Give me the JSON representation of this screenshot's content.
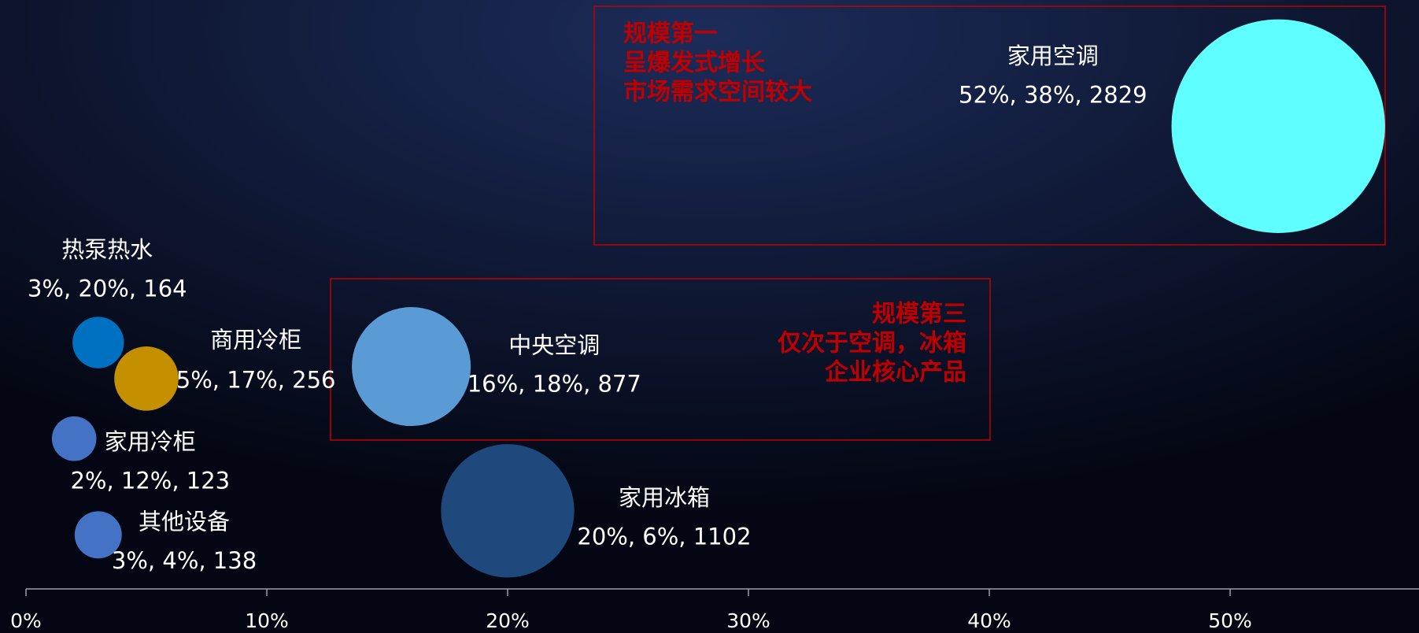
{
  "chart_data": {
    "type": "bubble",
    "series": [
      {
        "name": "家用空调",
        "color": "#5fffff",
        "x": 52,
        "y": 38,
        "size": 2829,
        "value_labels": "52%, 38%, 2829"
      },
      {
        "name": "中央空调",
        "color": "#5b9bd5",
        "x": 16,
        "y": 18,
        "size": 877,
        "value_labels": "16%, 18%, 877"
      },
      {
        "name": "家用冰箱",
        "color": "#1f497d",
        "x": 20,
        "y": 6,
        "size": 1102,
        "value_labels": "20%, 6%, 1102"
      },
      {
        "name": "热泵热水",
        "color": "#0070c0",
        "x": 3,
        "y": 20,
        "size": 164,
        "value_labels": "3%, 20%, 164"
      },
      {
        "name": "商用冷柜",
        "color": "#c49000",
        "x": 5,
        "y": 17,
        "size": 256,
        "value_labels": "5%, 17%, 256"
      },
      {
        "name": "家用冷柜",
        "color": "#4472c4",
        "x": 2,
        "y": 12,
        "size": 123,
        "value_labels": "2%, 12%, 123"
      },
      {
        "name": "其他设备",
        "color": "#4472c4",
        "x": 3,
        "y": 4,
        "size": 138,
        "value_labels": "3%, 4%, 138"
      }
    ],
    "xlim": [
      0,
      58
    ],
    "xticks": [
      {
        "value": 0,
        "label": "0%"
      },
      {
        "value": 10,
        "label": "10%"
      },
      {
        "value": 20,
        "label": "20%"
      },
      {
        "value": 30,
        "label": "30%"
      },
      {
        "value": 40,
        "label": "40%"
      },
      {
        "value": 50,
        "label": "50%"
      }
    ],
    "ylim": [
      -0.5,
      48.5
    ],
    "annotations": [
      {
        "lines": [
          "规模第一",
          "呈爆发式增长",
          "市场需求空间较大"
        ]
      },
      {
        "lines": [
          "规模第三",
          "仅次于空调，冰箱",
          "企业核心产品"
        ]
      }
    ]
  }
}
